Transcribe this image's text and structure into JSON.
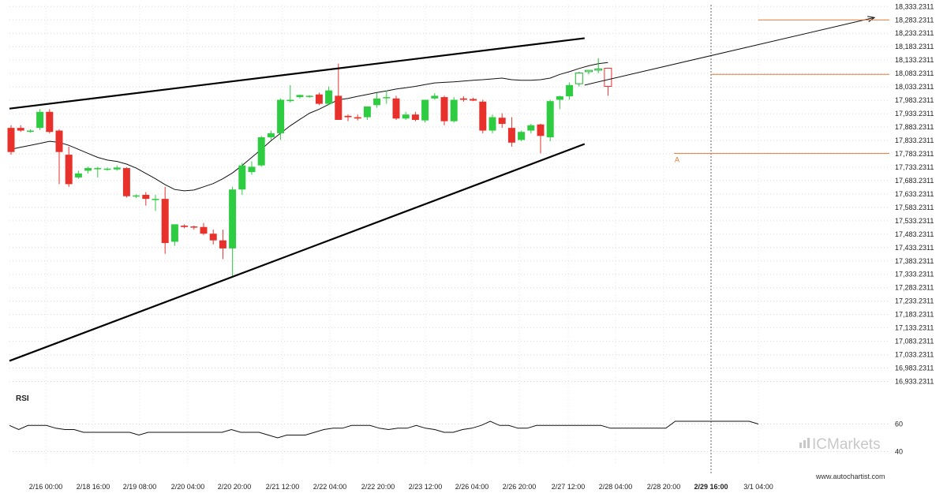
{
  "chart_data": {
    "type": "candlestick",
    "y_ticks": [
      "18,333.2311",
      "18,283.2311",
      "18,233.2311",
      "18,183.2311",
      "18,133.2311",
      "18,083.2311",
      "18,033.2311",
      "17,983.2311",
      "17,933.2311",
      "17,883.2311",
      "17,833.2311",
      "17,783.2311",
      "17,733.2311",
      "17,683.2311",
      "17,633.2311",
      "17,583.2311",
      "17,533.2311",
      "17,483.2311",
      "17,433.2311",
      "17,383.2311",
      "17,333.2311",
      "17,283.2311",
      "17,233.2311",
      "17,183.2311",
      "17,133.2311",
      "17,083.2311",
      "17,033.2311",
      "16,983.2311",
      "16,933.2311"
    ],
    "ylim": [
      16920,
      18340
    ],
    "x_ticks": [
      "2/16 00:00",
      "2/18 16:00",
      "2/19 08:00",
      "2/20 04:00",
      "2/20 20:00",
      "2/21 12:00",
      "2/22 04:00",
      "2/22 20:00",
      "2/23 12:00",
      "2/26 04:00",
      "2/26 20:00",
      "2/27 12:00",
      "2/28 04:00",
      "2/28 20:00",
      "2/29 16:00",
      "3/1 04:00"
    ],
    "x_tick_bold_index": 14,
    "candles": [
      {
        "o": 17880,
        "h": 17890,
        "l": 17780,
        "c": 17790
      },
      {
        "o": 17880,
        "h": 17890,
        "l": 17865,
        "c": 17870
      },
      {
        "o": 17870,
        "h": 17875,
        "l": 17862,
        "c": 17870
      },
      {
        "o": 17880,
        "h": 17950,
        "l": 17872,
        "c": 17940
      },
      {
        "o": 17940,
        "h": 17950,
        "l": 17860,
        "c": 17865
      },
      {
        "o": 17870,
        "h": 17875,
        "l": 17670,
        "c": 17790
      },
      {
        "o": 17780,
        "h": 17810,
        "l": 17660,
        "c": 17670
      },
      {
        "o": 17695,
        "h": 17720,
        "l": 17690,
        "c": 17710
      },
      {
        "o": 17720,
        "h": 17735,
        "l": 17710,
        "c": 17730
      },
      {
        "o": 17730,
        "h": 17735,
        "l": 17695,
        "c": 17730
      },
      {
        "o": 17725,
        "h": 17732,
        "l": 17720,
        "c": 17728
      },
      {
        "o": 17725,
        "h": 17740,
        "l": 17720,
        "c": 17732
      },
      {
        "o": 17730,
        "h": 17733,
        "l": 17620,
        "c": 17625
      },
      {
        "o": 17625,
        "h": 17632,
        "l": 17618,
        "c": 17628
      },
      {
        "o": 17630,
        "h": 17640,
        "l": 17590,
        "c": 17615
      },
      {
        "o": 17615,
        "h": 17630,
        "l": 17570,
        "c": 17615
      },
      {
        "o": 17615,
        "h": 17660,
        "l": 17410,
        "c": 17450
      },
      {
        "o": 17455,
        "h": 17520,
        "l": 17440,
        "c": 17520
      },
      {
        "o": 17515,
        "h": 17520,
        "l": 17505,
        "c": 17510
      },
      {
        "o": 17512,
        "h": 17515,
        "l": 17500,
        "c": 17508
      },
      {
        "o": 17510,
        "h": 17525,
        "l": 17480,
        "c": 17485
      },
      {
        "o": 17485,
        "h": 17500,
        "l": 17445,
        "c": 17460
      },
      {
        "o": 17460,
        "h": 17500,
        "l": 17390,
        "c": 17430
      },
      {
        "o": 17430,
        "h": 17660,
        "l": 17320,
        "c": 17650
      },
      {
        "o": 17650,
        "h": 17750,
        "l": 17630,
        "c": 17740
      },
      {
        "o": 17715,
        "h": 17755,
        "l": 17705,
        "c": 17735
      },
      {
        "o": 17740,
        "h": 17850,
        "l": 17735,
        "c": 17845
      },
      {
        "o": 17845,
        "h": 17870,
        "l": 17835,
        "c": 17860
      },
      {
        "o": 17860,
        "h": 17990,
        "l": 17835,
        "c": 17985
      },
      {
        "o": 17980,
        "h": 18040,
        "l": 17975,
        "c": 17985
      },
      {
        "o": 17995,
        "h": 18005,
        "l": 17990,
        "c": 18003
      },
      {
        "o": 17997,
        "h": 18002,
        "l": 17992,
        "c": 18000
      },
      {
        "o": 18005,
        "h": 18012,
        "l": 17965,
        "c": 17970
      },
      {
        "o": 17970,
        "h": 18035,
        "l": 17965,
        "c": 18020
      },
      {
        "o": 18000,
        "h": 18120,
        "l": 17910,
        "c": 17910
      },
      {
        "o": 17925,
        "h": 17930,
        "l": 17905,
        "c": 17920
      },
      {
        "o": 17920,
        "h": 17930,
        "l": 17908,
        "c": 17915
      },
      {
        "o": 17920,
        "h": 17960,
        "l": 17910,
        "c": 17960
      },
      {
        "o": 17965,
        "h": 18010,
        "l": 17955,
        "c": 17990
      },
      {
        "o": 17995,
        "h": 18020,
        "l": 17970,
        "c": 17995
      },
      {
        "o": 17990,
        "h": 18000,
        "l": 17910,
        "c": 17915
      },
      {
        "o": 17915,
        "h": 17940,
        "l": 17910,
        "c": 17930
      },
      {
        "o": 17930,
        "h": 17940,
        "l": 17905,
        "c": 17910
      },
      {
        "o": 17908,
        "h": 17985,
        "l": 17900,
        "c": 17985
      },
      {
        "o": 17990,
        "h": 18010,
        "l": 17985,
        "c": 18000
      },
      {
        "o": 17995,
        "h": 18000,
        "l": 17890,
        "c": 17905
      },
      {
        "o": 17905,
        "h": 17995,
        "l": 17900,
        "c": 17985
      },
      {
        "o": 17990,
        "h": 17998,
        "l": 17978,
        "c": 17985
      },
      {
        "o": 17988,
        "h": 17993,
        "l": 17980,
        "c": 17982
      },
      {
        "o": 17978,
        "h": 17985,
        "l": 17860,
        "c": 17870
      },
      {
        "o": 17870,
        "h": 17930,
        "l": 17860,
        "c": 17920
      },
      {
        "o": 17918,
        "h": 17935,
        "l": 17880,
        "c": 17895
      },
      {
        "o": 17880,
        "h": 17920,
        "l": 17810,
        "c": 17825
      },
      {
        "o": 17835,
        "h": 17870,
        "l": 17830,
        "c": 17865
      },
      {
        "o": 17870,
        "h": 17895,
        "l": 17860,
        "c": 17890
      },
      {
        "o": 17893,
        "h": 17896,
        "l": 17785,
        "c": 17850
      },
      {
        "o": 17845,
        "h": 17985,
        "l": 17830,
        "c": 17980
      },
      {
        "o": 17985,
        "h": 18000,
        "l": 17950,
        "c": 17998
      },
      {
        "o": 17998,
        "h": 18050,
        "l": 17985,
        "c": 18040
      },
      {
        "o": 18045,
        "h": 18090,
        "l": 18035,
        "c": 18085,
        "hollow": true
      },
      {
        "o": 18090,
        "h": 18095,
        "l": 18080,
        "c": 18095,
        "hollow": true
      },
      {
        "o": 18100,
        "h": 18140,
        "l": 18085,
        "c": 18100,
        "hollow": true
      },
      {
        "o": 18103,
        "h": 18105,
        "l": 18000,
        "c": 18035,
        "hollow": true
      }
    ],
    "moving_average": [
      17800,
      17808,
      17815,
      17822,
      17830,
      17826,
      17815,
      17800,
      17785,
      17770,
      17760,
      17755,
      17745,
      17730,
      17710,
      17690,
      17668,
      17650,
      17645,
      17648,
      17660,
      17672,
      17690,
      17712,
      17740,
      17770,
      17800,
      17832,
      17860,
      17888,
      17912,
      17935,
      17950,
      17968,
      17985,
      17990,
      17998,
      18005,
      18012,
      18018,
      18025,
      18030,
      18035,
      18042,
      18048,
      18050,
      18052,
      18055,
      18058,
      18060,
      18063,
      18066,
      18060,
      18058,
      18058,
      18060,
      18066,
      18080,
      18090,
      18102,
      18112,
      18120,
      18124
    ],
    "pattern_lines": [
      {
        "from": {
          "i": 0,
          "v": 17952
        },
        "to": {
          "i": 59,
          "v": 18215
        }
      },
      {
        "from": {
          "i": 0,
          "v": 17010
        },
        "to": {
          "i": 59,
          "v": 17820
        }
      }
    ],
    "projection": {
      "from": {
        "i": 59,
        "v": 18040
      },
      "to": {
        "i": 73,
        "v": 18292
      }
    },
    "target_level": 18283.2311,
    "level_lines": [
      18080,
      17785
    ],
    "point_label": "A",
    "rsi": {
      "title": "RSI",
      "ticks": [
        "60",
        "40"
      ],
      "values": [
        59,
        56,
        59,
        59,
        59,
        57,
        56,
        56,
        54,
        54,
        54,
        54,
        54,
        54,
        52,
        54,
        54,
        54,
        54,
        54,
        54,
        54,
        54,
        54,
        56,
        54,
        54,
        54,
        52,
        50,
        52,
        52,
        52,
        54,
        56,
        57,
        57,
        59,
        59,
        59,
        57,
        56,
        57,
        57,
        59,
        57,
        56,
        54,
        54,
        56,
        57,
        59,
        62,
        59,
        59,
        57,
        57,
        59,
        59,
        59,
        59,
        59,
        59,
        59,
        59,
        57,
        57,
        57,
        57,
        57,
        57,
        57,
        62,
        62,
        62,
        62,
        62,
        62,
        62,
        62,
        62,
        60
      ]
    }
  },
  "branding": {
    "logo_text": "ICMarkets",
    "website": "www.autochartist.com"
  }
}
